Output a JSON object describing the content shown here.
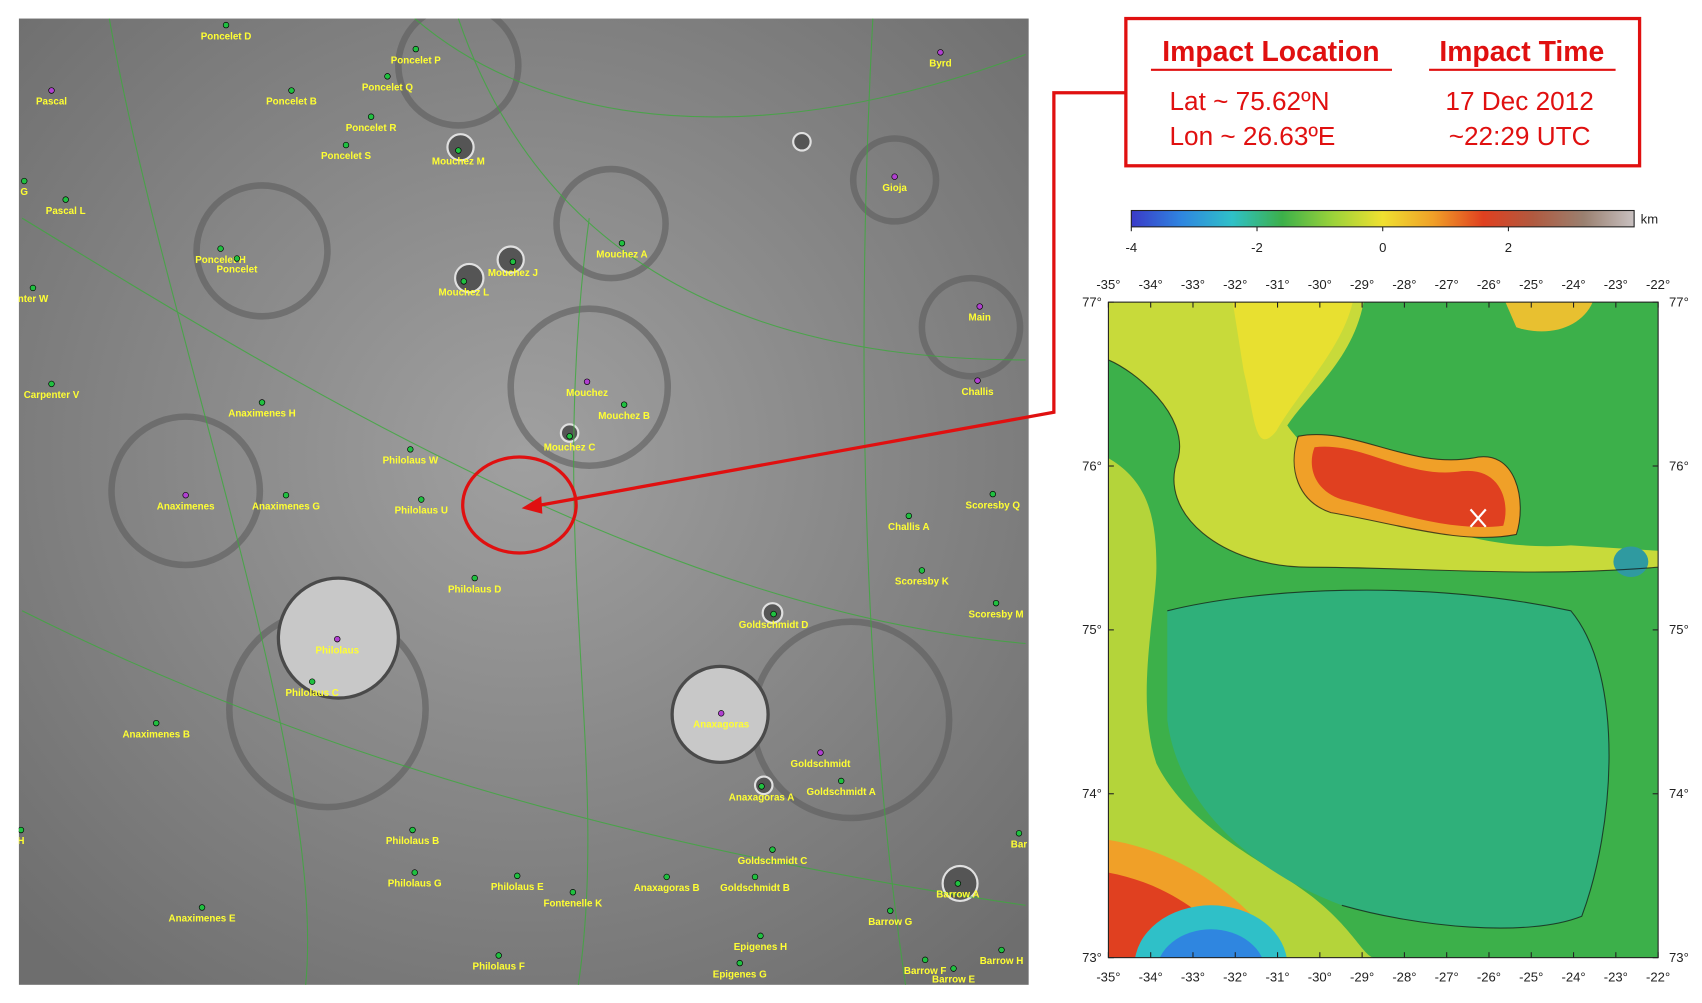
{
  "impact_box": {
    "location_title": "Impact Location",
    "time_title": "Impact Time",
    "lat": "Lat ~ 75.62ºN",
    "lon": "Lon ~ 26.63ºE",
    "date": "17 Dec 2012",
    "time": "~22:29 UTC"
  },
  "left_map": {
    "labels": [
      "Poncelet D",
      "Poncelet P",
      "Poncelet Q",
      "Pascal",
      "Poncelet B",
      "Poncelet R",
      "Poncelet S",
      "Mouchez M",
      "Byrd",
      "Gioja",
      "G",
      "Pascal L",
      "Poncelet H",
      "Poncelet",
      "Mouchez A",
      "Mouchez J",
      "Mouchez L",
      "nter W",
      "Main",
      "Carpenter V",
      "Challis",
      "Mouchez",
      "Mouchez B",
      "Anaximenes H",
      "Mouchez C",
      "Philolaus W",
      "Anaximenes",
      "Anaximenes G",
      "Philolaus U",
      "Scoresby Q",
      "Challis A",
      "Scoresby K",
      "Philolaus D",
      "Scoresby M",
      "Goldschmidt D",
      "Philolaus",
      "Philolaus C",
      "Anaxagoras",
      "Anaximenes B",
      "Goldschmidt",
      "Goldschmidt A",
      "Anaxagoras A",
      "Philolaus B",
      "Goldschmidt C",
      "Philolaus G",
      "Philolaus E",
      "Anaxagoras B",
      "Goldschmidt B",
      "Fontenelle K",
      "Barrow A",
      "Anaximenes E",
      "Barrow G",
      "Epigenes H",
      "Barrow H",
      "Philolaus F",
      "Epigenes G",
      "Barrow F",
      "Barrow E",
      "H",
      "Bar"
    ]
  },
  "colorbar": {
    "unit": "km",
    "lim": [
      -4,
      4
    ],
    "ticks": [
      -4,
      -2,
      0,
      2
    ],
    "colors": [
      "#3a3ac8",
      "#2f86e0",
      "#2fc0c8",
      "#3cb04a",
      "#9ad23a",
      "#f0e030",
      "#f0a028",
      "#e04020",
      "#b05a40",
      "#9a8070",
      "#c8c0c0"
    ]
  },
  "topo_map": {
    "xlim": [
      -35,
      -22
    ],
    "ylim": [
      73,
      77
    ],
    "xticks": [
      {
        "value": -35,
        "label": "-35°"
      },
      {
        "value": -34,
        "label": "-34°"
      },
      {
        "value": -33,
        "label": "-33°"
      },
      {
        "value": -32,
        "label": "-32°"
      },
      {
        "value": -31,
        "label": "-31°"
      },
      {
        "value": -30,
        "label": "-30°"
      },
      {
        "value": -29,
        "label": "-29°"
      },
      {
        "value": -28,
        "label": "-28°"
      },
      {
        "value": -27,
        "label": "-27°"
      },
      {
        "value": -26,
        "label": "-26°"
      },
      {
        "value": -25,
        "label": "-25°"
      },
      {
        "value": -24,
        "label": "-24°"
      },
      {
        "value": -23,
        "label": "-23°"
      },
      {
        "value": -22,
        "label": "-22°"
      }
    ],
    "yticks": [
      {
        "value": 73,
        "label": "73°"
      },
      {
        "value": 74,
        "label": "74°"
      },
      {
        "value": 75,
        "label": "75°"
      },
      {
        "value": 76,
        "label": "76°"
      },
      {
        "value": 77,
        "label": "77°"
      }
    ]
  }
}
